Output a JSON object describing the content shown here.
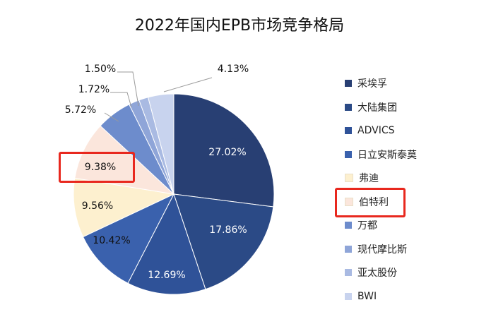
{
  "chart_data": {
    "type": "pie",
    "title": "2022年国内EPB市场竞争格局",
    "slices": [
      {
        "name": "采埃孚",
        "value": 27.02,
        "label": "27.02%",
        "color": "#283f73"
      },
      {
        "name": "大陆集团",
        "value": 17.86,
        "label": "17.86%",
        "color": "#2b4a86"
      },
      {
        "name": "ADVICS",
        "value": 12.69,
        "label": "12.69%",
        "color": "#2f5298"
      },
      {
        "name": "日立安斯泰莫",
        "value": 10.42,
        "label": "10.42%",
        "color": "#3a61ad"
      },
      {
        "name": "弗迪",
        "value": 9.56,
        "label": "9.56%",
        "color": "#fdf0cf"
      },
      {
        "name": "伯特利",
        "value": 9.38,
        "label": "9.38%",
        "color": "#fbe6dc"
      },
      {
        "name": "万都",
        "value": 5.72,
        "label": "5.72%",
        "color": "#6d8ccc"
      },
      {
        "name": "现代摩比斯",
        "value": 1.72,
        "label": "1.72%",
        "color": "#8fa5d8"
      },
      {
        "name": "亚太股份",
        "value": 1.5,
        "label": "1.50%",
        "color": "#a9bae2"
      },
      {
        "name": "BWI",
        "value": 4.13,
        "label": "4.13%",
        "color": "#c8d3ee"
      }
    ],
    "legend_position": "right",
    "highlighted": [
      "伯特利"
    ]
  },
  "colors": {
    "highlight": "#e8281e"
  }
}
